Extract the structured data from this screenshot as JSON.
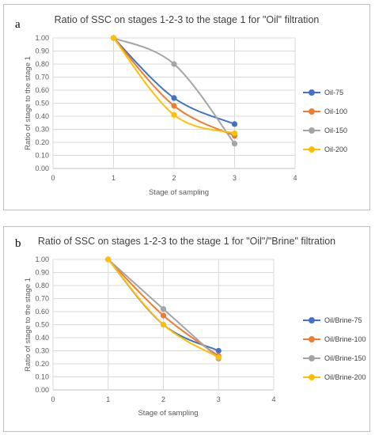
{
  "chart_data": [
    {
      "id": "a",
      "type": "line",
      "panel_letter": "a",
      "title": "Ratio of SSC on stages 1-2-3 to the stage 1 for \"Oil\" filtration",
      "xlabel": "Stage of sampling",
      "ylabel": "Ratio of stage to the stage 1",
      "xlim": [
        0,
        4
      ],
      "ylim": [
        0,
        1
      ],
      "x_ticks": [
        "0",
        "1",
        "2",
        "3",
        "4"
      ],
      "y_ticks": [
        "0.00",
        "0.10",
        "0.20",
        "0.30",
        "0.40",
        "0.50",
        "0.60",
        "0.70",
        "0.80",
        "0.90",
        "1.00"
      ],
      "grid": true,
      "smooth": true,
      "legend_position": "right",
      "x": [
        1,
        2,
        3
      ],
      "series": [
        {
          "name": "Oil-75",
          "color": "#4472C4",
          "values": [
            1.0,
            0.54,
            0.34
          ]
        },
        {
          "name": "Oil-100",
          "color": "#ED7D31",
          "values": [
            1.0,
            0.48,
            0.25
          ]
        },
        {
          "name": "Oil-150",
          "color": "#A5A5A5",
          "values": [
            1.0,
            0.8,
            0.19
          ]
        },
        {
          "name": "Oil-200",
          "color": "#FFC000",
          "values": [
            1.0,
            0.41,
            0.27
          ]
        }
      ]
    },
    {
      "id": "b",
      "type": "line",
      "panel_letter": "b",
      "title": "Ratio of SSC on stages 1-2-3 to the stage 1 for \"Oil\"/\"Brine\" filtration",
      "xlabel": "Stage of sampling",
      "ylabel": "Ratio of stage to the stage 1",
      "xlim": [
        0,
        4
      ],
      "ylim": [
        0,
        1
      ],
      "x_ticks": [
        "0",
        "1",
        "2",
        "3",
        "4"
      ],
      "y_ticks": [
        "0.00",
        "0.10",
        "0.20",
        "0.30",
        "0.40",
        "0.50",
        "0.60",
        "0.70",
        "0.80",
        "0.90",
        "1.00"
      ],
      "grid": true,
      "smooth": true,
      "legend_position": "right",
      "x": [
        1,
        2,
        3
      ],
      "series": [
        {
          "name": "Oil/Brine-75",
          "color": "#4472C4",
          "values": [
            1.0,
            0.5,
            0.3
          ]
        },
        {
          "name": "Oil/Brine-100",
          "color": "#ED7D31",
          "values": [
            1.0,
            0.57,
            0.26
          ]
        },
        {
          "name": "Oil/Brine-150",
          "color": "#A5A5A5",
          "values": [
            1.0,
            0.62,
            0.24
          ]
        },
        {
          "name": "Oil/Brine-200",
          "color": "#FFC000",
          "values": [
            1.0,
            0.5,
            0.25
          ]
        }
      ]
    }
  ]
}
